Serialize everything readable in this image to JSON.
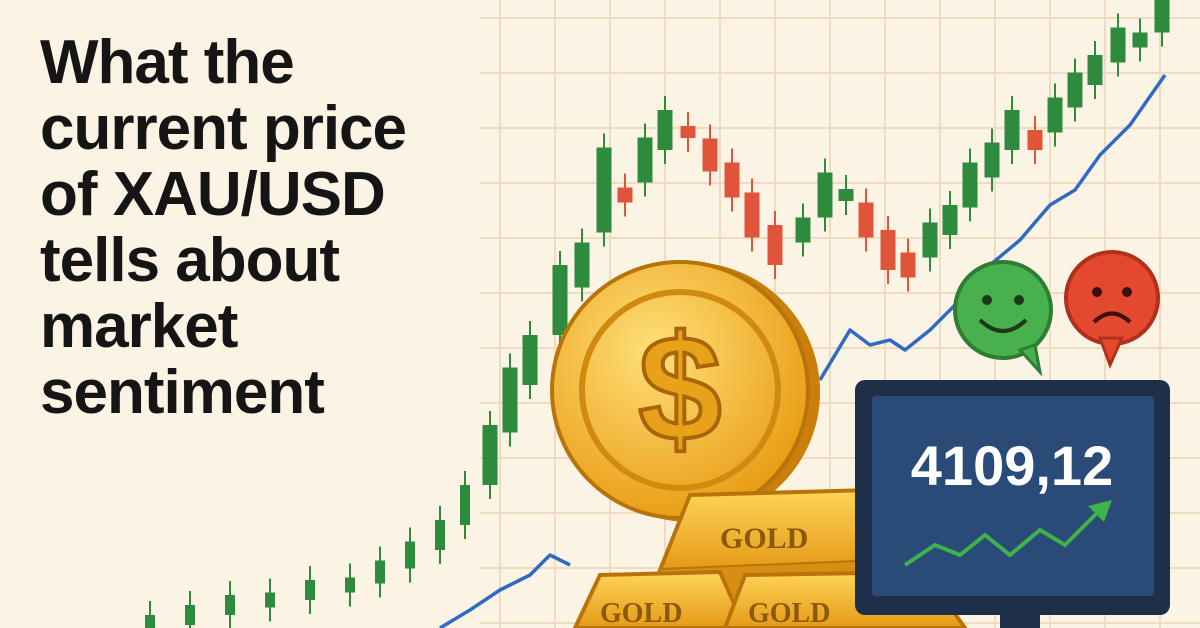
{
  "headline": {
    "lines": [
      "What the",
      "current price",
      "of XAU/USD",
      "tells about",
      "market",
      "sentiment"
    ]
  },
  "coin": {
    "symbol": "$"
  },
  "gold_bars": {
    "labels": [
      "GOLD",
      "GOLD",
      "GOLD"
    ]
  },
  "monitor": {
    "price": "4109,12"
  },
  "sentiment_icons": [
    "happy-face",
    "sad-face"
  ],
  "colors": {
    "background": "#FBF3E3",
    "bullish": "#2E8B3E",
    "bearish": "#E0553A",
    "trend_line": "#2F6BC4",
    "gold": "#F2B321",
    "monitor": "#1E2F4A"
  }
}
